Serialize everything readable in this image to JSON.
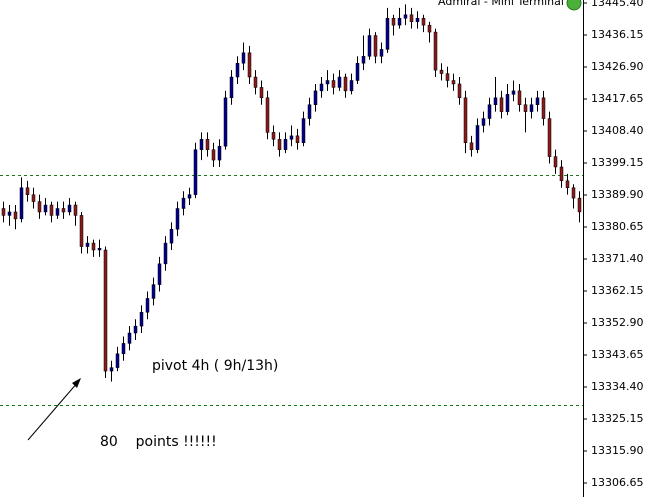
{
  "chart_data": {
    "type": "candlestick",
    "title": "Admiral - Mini Terminal",
    "up_color": "#00008b",
    "down_color": "#8b1a1a",
    "wick_color": "#000000",
    "ylim": [
      13302.6,
      13446.27
    ],
    "yticks": [
      {
        "value": 13445.4,
        "label": "13445.40"
      },
      13436.15,
      {
        "value": 13426.9,
        "label": "13426.90"
      },
      13417.65,
      {
        "value": 13408.4,
        "label": "13408.40"
      },
      13399.15,
      {
        "value": 13389.9,
        "label": "13389.90"
      },
      13380.65,
      {
        "value": 13371.4,
        "label": "13371.40"
      },
      13362.15,
      {
        "value": 13352.9,
        "label": "13352.90"
      },
      13343.65,
      {
        "value": 13334.4,
        "label": "13334.40"
      },
      13325.15,
      {
        "value": 13315.9,
        "label": "13315.90"
      },
      13306.65
    ],
    "grid": false,
    "levels": [
      13395.7,
      13329.2
    ],
    "level_color": "#1a7a1a",
    "annotations": [
      "pivot 4h ( 9h/13h)",
      "80    points !!!!!!"
    ],
    "candles": [
      [
        13386,
        13388,
        13382,
        13384
      ],
      [
        13384,
        13387,
        13381,
        13385
      ],
      [
        13385,
        13387,
        13380,
        13383
      ],
      [
        13383,
        13395,
        13382,
        13392
      ],
      [
        13392,
        13394,
        13388,
        13390
      ],
      [
        13390,
        13392,
        13386,
        13388
      ],
      [
        13388,
        13390,
        13383,
        13385
      ],
      [
        13385,
        13389,
        13384,
        13387
      ],
      [
        13387,
        13388,
        13382,
        13384
      ],
      [
        13384,
        13388,
        13383,
        13386
      ],
      [
        13386,
        13388,
        13383,
        13385
      ],
      [
        13385,
        13389,
        13384,
        13387
      ],
      [
        13387,
        13388,
        13381,
        13384
      ],
      [
        13384,
        13385,
        13373,
        13375
      ],
      [
        13375,
        13378,
        13373,
        13376
      ],
      [
        13376,
        13377,
        13372,
        13374
      ],
      [
        13374,
        13377,
        13372,
        13374.5
      ],
      [
        13374,
        13375,
        13337,
        13339
      ],
      [
        13339,
        13342,
        13336,
        13340
      ],
      [
        13340,
        13346,
        13339,
        13344
      ],
      [
        13344,
        13349,
        13342,
        13347
      ],
      [
        13347,
        13352,
        13345,
        13350
      ],
      [
        13350,
        13354,
        13348,
        13352
      ],
      [
        13352,
        13358,
        13350,
        13356
      ],
      [
        13356,
        13362,
        13354,
        13360
      ],
      [
        13360,
        13366,
        13358,
        13364
      ],
      [
        13364,
        13372,
        13362,
        13370
      ],
      [
        13370,
        13378,
        13368,
        13376
      ],
      [
        13376,
        13382,
        13374,
        13380
      ],
      [
        13380,
        13388,
        13378,
        13386
      ],
      [
        13386,
        13391,
        13384,
        13389
      ],
      [
        13389,
        13392,
        13387,
        13390
      ],
      [
        13390,
        13405,
        13389,
        13403
      ],
      [
        13403,
        13408,
        13400,
        13406
      ],
      [
        13406,
        13408,
        13401,
        13403
      ],
      [
        13403,
        13405,
        13398,
        13400
      ],
      [
        13400,
        13406,
        13398,
        13404
      ],
      [
        13404,
        13420,
        13403,
        13418
      ],
      [
        13418,
        13426,
        13416,
        13424
      ],
      [
        13424,
        13430,
        13422,
        13428
      ],
      [
        13428,
        13434,
        13426,
        13431
      ],
      [
        13431,
        13433,
        13422,
        13424
      ],
      [
        13424,
        13426,
        13419,
        13421
      ],
      [
        13421,
        13423,
        13416,
        13418
      ],
      [
        13418,
        13420,
        13406,
        13408
      ],
      [
        13408,
        13410,
        13404,
        13406
      ],
      [
        13406,
        13408,
        13401,
        13403
      ],
      [
        13403,
        13408,
        13402,
        13406
      ],
      [
        13406,
        13410,
        13404,
        13407
      ],
      [
        13407,
        13409,
        13403,
        13405
      ],
      [
        13405,
        13414,
        13404,
        13412
      ],
      [
        13412,
        13418,
        13410,
        13416
      ],
      [
        13416,
        13422,
        13414,
        13420
      ],
      [
        13420,
        13424,
        13418,
        13422
      ],
      [
        13422,
        13426,
        13420,
        13423
      ],
      [
        13423,
        13425,
        13419,
        13421
      ],
      [
        13421,
        13426,
        13420,
        13424
      ],
      [
        13424,
        13425,
        13418,
        13420
      ],
      [
        13420,
        13425,
        13419,
        13423
      ],
      [
        13423,
        13430,
        13422,
        13428
      ],
      [
        13428,
        13436,
        13426,
        13430
      ],
      [
        13430,
        13438,
        13429,
        13436
      ],
      [
        13436,
        13437,
        13428,
        13430
      ],
      [
        13430,
        13434,
        13428,
        13432
      ],
      [
        13432,
        13444,
        13431,
        13441
      ],
      [
        13441,
        13442,
        13436,
        13439
      ],
      [
        13439,
        13444,
        13438,
        13441
      ],
      [
        13441,
        13445,
        13439,
        13442
      ],
      [
        13442,
        13444,
        13438,
        13440
      ],
      [
        13440,
        13443,
        13438,
        13441
      ],
      [
        13441,
        13442,
        13437,
        13439
      ],
      [
        13439,
        13440,
        13434,
        13437
      ],
      [
        13437,
        13438,
        13424,
        13426
      ],
      [
        13426,
        13428,
        13423,
        13425
      ],
      [
        13425,
        13427,
        13421,
        13423
      ],
      [
        13423,
        13425,
        13420,
        13422
      ],
      [
        13422,
        13424,
        13416,
        13418
      ],
      [
        13418,
        13420,
        13402,
        13405
      ],
      [
        13405,
        13407,
        13401,
        13403
      ],
      [
        13403,
        13412,
        13402,
        13410
      ],
      [
        13410,
        13414,
        13408,
        13412
      ],
      [
        13412,
        13418,
        13410,
        13416
      ],
      [
        13416,
        13424,
        13414,
        13418
      ],
      [
        13418,
        13420,
        13412,
        13414
      ],
      [
        13414,
        13422,
        13413,
        13419
      ],
      [
        13419,
        13423,
        13417,
        13420
      ],
      [
        13420,
        13422,
        13414,
        13416
      ],
      [
        13416,
        13418,
        13408,
        13414
      ],
      [
        13414,
        13418,
        13412,
        13416
      ],
      [
        13416,
        13420,
        13414,
        13418
      ],
      [
        13418,
        13420,
        13410,
        13412
      ],
      [
        13412,
        13414,
        13399,
        13401
      ],
      [
        13401,
        13403,
        13396,
        13398
      ],
      [
        13398,
        13400,
        13392,
        13394
      ],
      [
        13394,
        13396,
        13390,
        13392
      ],
      [
        13392,
        13393,
        13386,
        13389
      ],
      [
        13389,
        13391,
        13382,
        13385
      ]
    ]
  }
}
